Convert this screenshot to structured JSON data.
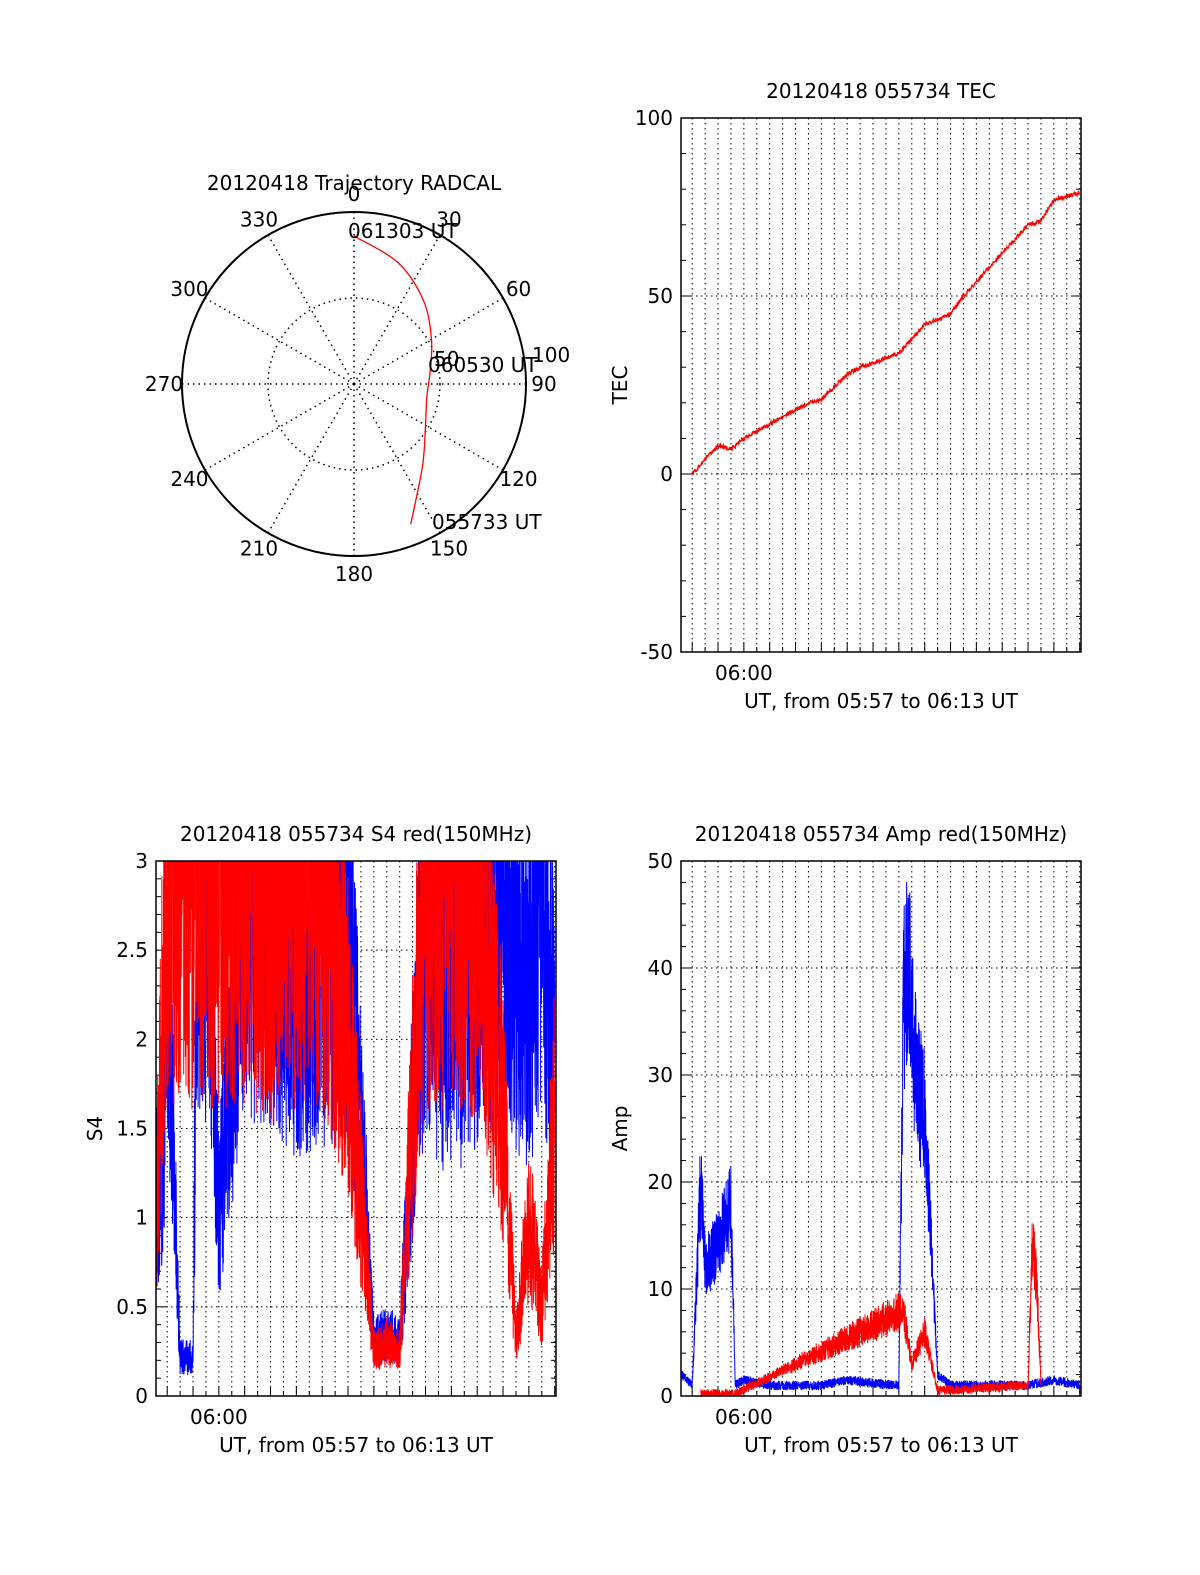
{
  "colors": {
    "red": "#ff0000",
    "blue": "#0000ff",
    "axis": "#000000"
  },
  "chart_data": [
    {
      "type": "polar",
      "title": "20120418 Trajectory RADCAL",
      "azimuth_labels": [
        "0",
        "30",
        "60",
        "90",
        "120",
        "150",
        "180",
        "210",
        "240",
        "270",
        "300",
        "330"
      ],
      "radial_labels": [
        "50",
        "100"
      ],
      "rlim": [
        0,
        100
      ],
      "grid": true,
      "annotations": [
        "061303 UT",
        "060530 UT",
        "055733 UT"
      ],
      "series": [
        {
          "color": "red",
          "points": [
            {
              "az": 158,
              "r": 88
            },
            {
              "az": 140,
              "r": 62
            },
            {
              "az": 120,
              "r": 48
            },
            {
              "az": 100,
              "r": 43
            },
            {
              "az": 80,
              "r": 45
            },
            {
              "az": 60,
              "r": 52
            },
            {
              "az": 40,
              "r": 63
            },
            {
              "az": 20,
              "r": 75
            },
            {
              "az": 0,
              "r": 86
            }
          ]
        }
      ]
    },
    {
      "type": "line",
      "title": "20120418 055734 TEC",
      "xlabel": "UT, from 05:57 to 06:13 UT",
      "ylabel": "TEC",
      "xlim": [
        "05:57:34",
        "06:13:03"
      ],
      "ylim": [
        -50,
        100
      ],
      "yticks": [
        "-50",
        "0",
        "50",
        "100"
      ],
      "xticks": [
        "06:00"
      ],
      "grid": true,
      "series": [
        {
          "color": "red",
          "x": [
            "05:58:00",
            "05:58:30",
            "05:59:00",
            "05:59:30",
            "06:00:00",
            "06:01:00",
            "06:02:00",
            "06:02:30",
            "06:03:00",
            "06:04:00",
            "06:04:30",
            "06:05:00",
            "06:06:00",
            "06:07:00",
            "06:08:00",
            "06:08:30",
            "06:09:00",
            "06:10:00",
            "06:11:00",
            "06:11:30",
            "06:12:00",
            "06:13:00"
          ],
          "y": [
            0,
            4,
            8,
            7,
            10,
            14,
            18,
            20,
            21,
            28,
            30,
            31,
            34,
            42,
            45,
            50,
            54,
            62,
            70,
            71,
            77,
            79
          ]
        }
      ]
    },
    {
      "type": "line",
      "title": "20120418 055734 S4 red(150MHz)",
      "xlabel": "UT, from 05:57 to 06:13 UT",
      "ylabel": "S4",
      "xlim": [
        "05:57:34",
        "06:13:03"
      ],
      "ylim": [
        0,
        3
      ],
      "yticks": [
        "0",
        "0.5",
        "1",
        "1.5",
        "2",
        "2.5",
        "3"
      ],
      "xticks": [
        "06:00"
      ],
      "grid": true,
      "series": [
        {
          "color": "blue",
          "x": [
            "05:57:35",
            "05:57:50",
            "05:58:00",
            "05:58:30",
            "05:59:00",
            "05:59:10",
            "05:59:40",
            "06:00:00",
            "06:01:00",
            "06:02:00",
            "06:03:00",
            "06:04:00",
            "06:05:00",
            "06:06:00",
            "06:06:30",
            "06:07:00",
            "06:08:00",
            "06:08:30",
            "06:09:00",
            "06:10:00",
            "06:11:00",
            "06:12:00",
            "06:12:30",
            "06:13:00"
          ],
          "y": [
            1.1,
            1.4,
            2.4,
            0.22,
            0.22,
            3.0,
            2.5,
            1.0,
            2.9,
            2.7,
            2.5,
            2.6,
            2.7,
            0.3,
            0.35,
            0.3,
            2.8,
            2.4,
            2.2,
            2.6,
            2.8,
            2.3,
            2.9,
            2.0
          ]
        },
        {
          "color": "red",
          "x": [
            "05:57:35",
            "05:58:00",
            "05:59:00",
            "06:00:00",
            "06:01:00",
            "06:02:00",
            "06:03:00",
            "06:04:00",
            "06:05:00",
            "06:06:00",
            "06:06:30",
            "06:07:00",
            "06:08:00",
            "06:09:00",
            "06:10:00",
            "06:11:00",
            "06:11:30",
            "06:12:00",
            "06:12:30",
            "06:13:00"
          ],
          "y": [
            1.0,
            3.0,
            3.0,
            3.0,
            3.0,
            2.8,
            3.0,
            3.0,
            2.0,
            0.25,
            0.3,
            0.25,
            3.0,
            3.0,
            2.9,
            1.6,
            0.3,
            1.0,
            0.5,
            1.6
          ]
        }
      ]
    },
    {
      "type": "line",
      "title": "20120418 055734 Amp red(150MHz)",
      "xlabel": "UT, from 05:57 to 06:13 UT",
      "ylabel": "Amp",
      "xlim": [
        "05:57:34",
        "06:13:03"
      ],
      "ylim": [
        0,
        50
      ],
      "yticks": [
        "0",
        "10",
        "20",
        "30",
        "40",
        "50"
      ],
      "xticks": [
        "06:00"
      ],
      "grid": true,
      "series": [
        {
          "color": "blue",
          "x": [
            "05:57:35",
            "05:58:00",
            "05:58:20",
            "05:58:30",
            "05:59:00",
            "05:59:30",
            "05:59:40",
            "06:00:00",
            "06:01:00",
            "06:02:00",
            "06:03:00",
            "06:04:00",
            "06:05:00",
            "06:06:00",
            "06:06:10",
            "06:06:20",
            "06:06:40",
            "06:07:00",
            "06:07:30",
            "06:08:00",
            "06:09:00",
            "06:10:00",
            "06:11:00",
            "06:12:00",
            "06:13:00"
          ],
          "y": [
            2,
            1,
            20,
            12,
            14,
            18,
            1,
            1.5,
            1,
            1,
            1,
            1.5,
            1.2,
            1,
            36,
            41,
            30,
            26,
            2,
            1,
            1,
            1,
            1,
            1.5,
            1
          ]
        },
        {
          "color": "red",
          "x": [
            "05:58:20",
            "05:59:40",
            "06:06:10",
            "06:06:30",
            "06:07:00",
            "06:07:30",
            "06:11:00",
            "06:11:10",
            "06:11:20",
            "06:11:30"
          ],
          "y": [
            0.2,
            0.2,
            8,
            3,
            6,
            0.5,
            1,
            14,
            11,
            1
          ]
        }
      ]
    }
  ]
}
